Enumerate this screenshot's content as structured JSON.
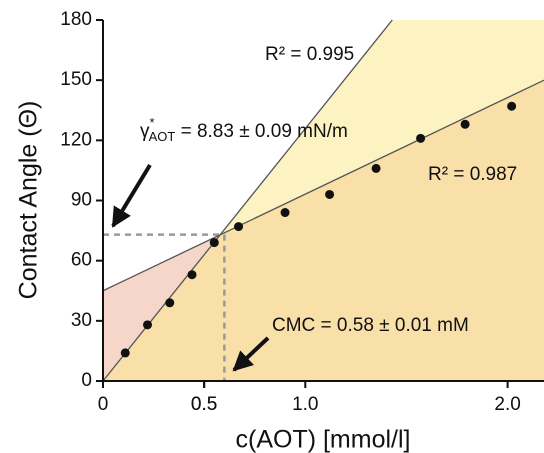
{
  "chart_data": {
    "type": "scatter",
    "x_label": "c(AOT) [mmol/l]",
    "y_label": "Contact Angle (Θ)",
    "xlim": [
      0,
      2.18
    ],
    "ylim": [
      0,
      180
    ],
    "xticks": [
      0,
      0.5,
      {
        "value": 1,
        "label": "1.0"
      },
      0.5,
      {
        "value": 2,
        "label": "2.0"
      }
    ],
    "yticks": [
      0,
      30,
      60,
      90,
      120,
      150,
      180
    ],
    "series": [
      {
        "name": "data",
        "color": "#111111",
        "x": [
          0.11,
          0.22,
          0.33,
          0.44,
          0.55,
          0.67,
          0.9,
          1.12,
          1.35,
          1.57,
          1.79,
          2.02
        ],
        "values": [
          14,
          28,
          39,
          53,
          69,
          77,
          84,
          93,
          106,
          121,
          128,
          137
        ]
      }
    ],
    "fit_lines": [
      {
        "label": "R² = 0.995",
        "x": [
          0,
          1.43
        ],
        "y": [
          0,
          180
        ],
        "color": "#555555"
      },
      {
        "label": "R² = 0.987",
        "x": [
          0,
          2.18
        ],
        "y": [
          45,
          150
        ],
        "color": "#555555"
      }
    ],
    "regions": {
      "below": "#f9dfa8",
      "left_between": "#f5d6c8",
      "right_between": "#fdf3c2"
    },
    "guides": {
      "x": 0.6,
      "y": 73,
      "color": "#999999"
    },
    "annotations": {
      "gamma": {
        "symbol": "γ",
        "sup": "*",
        "sub": "AOT",
        "text": " = 8.83 ± 0.09 mN/m"
      },
      "cmc": "CMC = 0.58 ± 0.01 mM"
    }
  }
}
